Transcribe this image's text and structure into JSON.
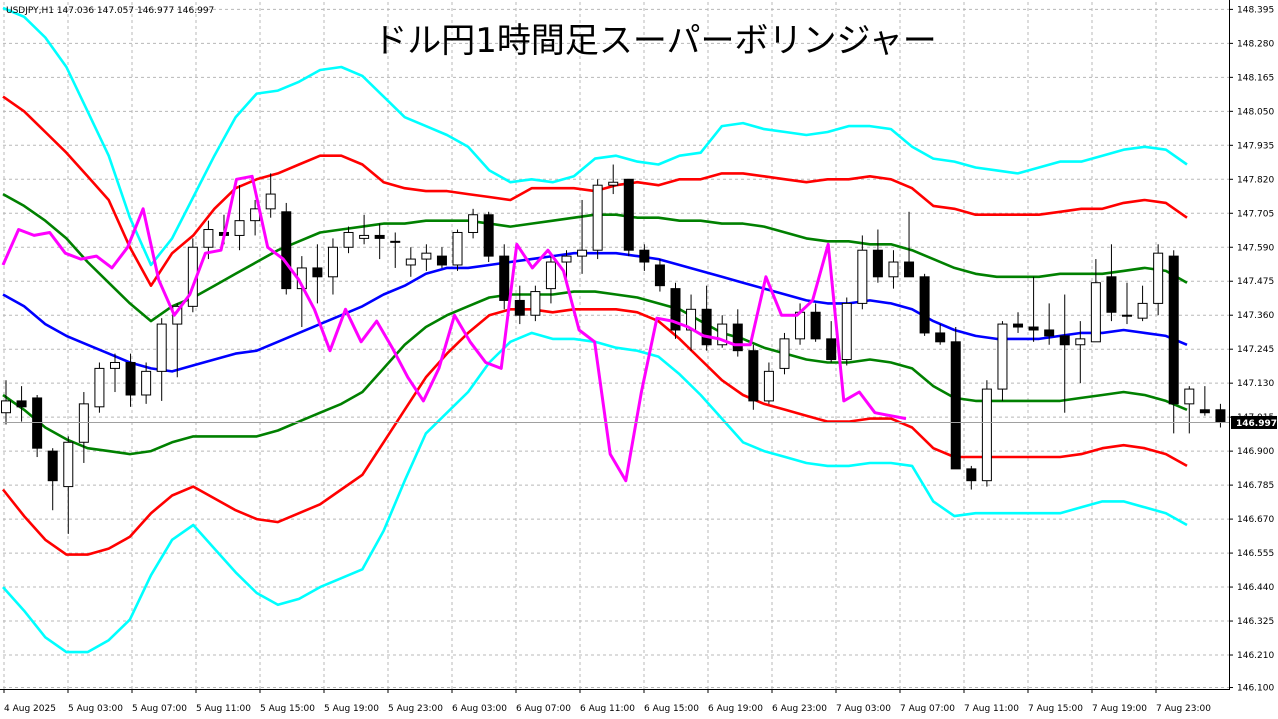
{
  "header": {
    "symbol_info": "USDJPY,H1  147.036 147.057 146.977 146.997"
  },
  "chart_data": {
    "type": "candlestick",
    "title": "ドル円1時間足スーパーボリンジャー",
    "y_range": [
      146.095,
      148.42
    ],
    "y_ticks": [
      "148.395",
      "148.280",
      "148.165",
      "148.050",
      "147.935",
      "147.820",
      "147.705",
      "147.590",
      "147.475",
      "147.360",
      "147.245",
      "147.130",
      "147.015",
      "146.900",
      "146.785",
      "146.670",
      "146.555",
      "146.440",
      "146.325",
      "146.210",
      "146.100"
    ],
    "x_labels": [
      "4 Aug 2025",
      "5 Aug 03:00",
      "5 Aug 07:00",
      "5 Aug 11:00",
      "5 Aug 15:00",
      "5 Aug 19:00",
      "5 Aug 23:00",
      "6 Aug 03:00",
      "6 Aug 07:00",
      "6 Aug 11:00",
      "6 Aug 15:00",
      "6 Aug 19:00",
      "6 Aug 23:00",
      "7 Aug 03:00",
      "7 Aug 07:00",
      "7 Aug 11:00",
      "7 Aug 15:00",
      "7 Aug 19:00",
      "7 Aug 23:00"
    ],
    "current_price": "146.997",
    "grid": true,
    "candles": [
      {
        "o": 147.03,
        "h": 147.14,
        "l": 146.99,
        "c": 147.07
      },
      {
        "o": 147.07,
        "h": 147.12,
        "l": 147.0,
        "c": 147.05
      },
      {
        "o": 147.08,
        "h": 147.09,
        "l": 146.88,
        "c": 146.91
      },
      {
        "o": 146.9,
        "h": 146.91,
        "l": 146.7,
        "c": 146.8
      },
      {
        "o": 146.78,
        "h": 146.95,
        "l": 146.62,
        "c": 146.93
      },
      {
        "o": 146.93,
        "h": 147.1,
        "l": 146.86,
        "c": 147.06
      },
      {
        "o": 147.05,
        "h": 147.2,
        "l": 147.03,
        "c": 147.18
      },
      {
        "o": 147.18,
        "h": 147.23,
        "l": 147.1,
        "c": 147.2
      },
      {
        "o": 147.2,
        "h": 147.23,
        "l": 147.05,
        "c": 147.09
      },
      {
        "o": 147.09,
        "h": 147.2,
        "l": 147.06,
        "c": 147.17
      },
      {
        "o": 147.17,
        "h": 147.35,
        "l": 147.07,
        "c": 147.33
      },
      {
        "o": 147.33,
        "h": 147.4,
        "l": 147.15,
        "c": 147.39
      },
      {
        "o": 147.39,
        "h": 147.62,
        "l": 147.37,
        "c": 147.59
      },
      {
        "o": 147.59,
        "h": 147.68,
        "l": 147.55,
        "c": 147.65
      },
      {
        "o": 147.64,
        "h": 147.7,
        "l": 147.6,
        "c": 147.63
      },
      {
        "o": 147.63,
        "h": 147.8,
        "l": 147.58,
        "c": 147.68
      },
      {
        "o": 147.68,
        "h": 147.75,
        "l": 147.63,
        "c": 147.72
      },
      {
        "o": 147.72,
        "h": 147.84,
        "l": 147.69,
        "c": 147.77
      },
      {
        "o": 147.71,
        "h": 147.74,
        "l": 147.43,
        "c": 147.45
      },
      {
        "o": 147.45,
        "h": 147.56,
        "l": 147.32,
        "c": 147.52
      },
      {
        "o": 147.52,
        "h": 147.6,
        "l": 147.4,
        "c": 147.49
      },
      {
        "o": 147.49,
        "h": 147.62,
        "l": 147.43,
        "c": 147.59
      },
      {
        "o": 147.59,
        "h": 147.66,
        "l": 147.57,
        "c": 147.64
      },
      {
        "o": 147.62,
        "h": 147.7,
        "l": 147.6,
        "c": 147.63
      },
      {
        "o": 147.63,
        "h": 147.67,
        "l": 147.55,
        "c": 147.62
      },
      {
        "o": 147.61,
        "h": 147.64,
        "l": 147.52,
        "c": 147.61
      },
      {
        "o": 147.53,
        "h": 147.59,
        "l": 147.49,
        "c": 147.55
      },
      {
        "o": 147.55,
        "h": 147.6,
        "l": 147.51,
        "c": 147.57
      },
      {
        "o": 147.56,
        "h": 147.59,
        "l": 147.52,
        "c": 147.53
      },
      {
        "o": 147.53,
        "h": 147.65,
        "l": 147.51,
        "c": 147.64
      },
      {
        "o": 147.64,
        "h": 147.72,
        "l": 147.62,
        "c": 147.7
      },
      {
        "o": 147.7,
        "h": 147.71,
        "l": 147.54,
        "c": 147.56
      },
      {
        "o": 147.56,
        "h": 147.6,
        "l": 147.38,
        "c": 147.41
      },
      {
        "o": 147.41,
        "h": 147.46,
        "l": 147.33,
        "c": 147.36
      },
      {
        "o": 147.36,
        "h": 147.46,
        "l": 147.34,
        "c": 147.44
      },
      {
        "o": 147.45,
        "h": 147.56,
        "l": 147.4,
        "c": 147.54
      },
      {
        "o": 147.54,
        "h": 147.58,
        "l": 147.48,
        "c": 147.56
      },
      {
        "o": 147.56,
        "h": 147.75,
        "l": 147.5,
        "c": 147.58
      },
      {
        "o": 147.58,
        "h": 147.82,
        "l": 147.55,
        "c": 147.8
      },
      {
        "o": 147.8,
        "h": 147.87,
        "l": 147.77,
        "c": 147.81
      },
      {
        "o": 147.82,
        "h": 147.82,
        "l": 147.56,
        "c": 147.58
      },
      {
        "o": 147.58,
        "h": 147.6,
        "l": 147.51,
        "c": 147.54
      },
      {
        "o": 147.53,
        "h": 147.55,
        "l": 147.44,
        "c": 147.46
      },
      {
        "o": 147.45,
        "h": 147.47,
        "l": 147.28,
        "c": 147.31
      },
      {
        "o": 147.31,
        "h": 147.43,
        "l": 147.24,
        "c": 147.38
      },
      {
        "o": 147.38,
        "h": 147.46,
        "l": 147.24,
        "c": 147.26
      },
      {
        "o": 147.26,
        "h": 147.36,
        "l": 147.25,
        "c": 147.33
      },
      {
        "o": 147.33,
        "h": 147.38,
        "l": 147.22,
        "c": 147.24
      },
      {
        "o": 147.24,
        "h": 147.26,
        "l": 147.04,
        "c": 147.07
      },
      {
        "o": 147.07,
        "h": 147.2,
        "l": 147.06,
        "c": 147.17
      },
      {
        "o": 147.18,
        "h": 147.3,
        "l": 147.16,
        "c": 147.28
      },
      {
        "o": 147.28,
        "h": 147.4,
        "l": 147.26,
        "c": 147.37
      },
      {
        "o": 147.37,
        "h": 147.4,
        "l": 147.27,
        "c": 147.28
      },
      {
        "o": 147.28,
        "h": 147.34,
        "l": 147.2,
        "c": 147.21
      },
      {
        "o": 147.21,
        "h": 147.42,
        "l": 147.19,
        "c": 147.4
      },
      {
        "o": 147.4,
        "h": 147.63,
        "l": 147.38,
        "c": 147.58
      },
      {
        "o": 147.58,
        "h": 147.65,
        "l": 147.47,
        "c": 147.49
      },
      {
        "o": 147.49,
        "h": 147.58,
        "l": 147.45,
        "c": 147.54
      },
      {
        "o": 147.54,
        "h": 147.71,
        "l": 147.49,
        "c": 147.49
      },
      {
        "o": 147.49,
        "h": 147.5,
        "l": 147.29,
        "c": 147.3
      },
      {
        "o": 147.3,
        "h": 147.33,
        "l": 147.26,
        "c": 147.27
      },
      {
        "o": 147.27,
        "h": 147.32,
        "l": 146.84,
        "c": 146.84
      },
      {
        "o": 146.84,
        "h": 146.85,
        "l": 146.77,
        "c": 146.8
      },
      {
        "o": 146.8,
        "h": 147.14,
        "l": 146.78,
        "c": 147.11
      },
      {
        "o": 147.11,
        "h": 147.34,
        "l": 147.07,
        "c": 147.33
      },
      {
        "o": 147.33,
        "h": 147.37,
        "l": 147.3,
        "c": 147.32
      },
      {
        "o": 147.32,
        "h": 147.49,
        "l": 147.27,
        "c": 147.31
      },
      {
        "o": 147.31,
        "h": 147.4,
        "l": 147.26,
        "c": 147.29
      },
      {
        "o": 147.29,
        "h": 147.43,
        "l": 147.03,
        "c": 147.26
      },
      {
        "o": 147.26,
        "h": 147.34,
        "l": 147.13,
        "c": 147.28
      },
      {
        "o": 147.27,
        "h": 147.55,
        "l": 147.27,
        "c": 147.47
      },
      {
        "o": 147.49,
        "h": 147.6,
        "l": 147.34,
        "c": 147.37
      },
      {
        "o": 147.36,
        "h": 147.47,
        "l": 147.33,
        "c": 147.36
      },
      {
        "o": 147.35,
        "h": 147.46,
        "l": 147.34,
        "c": 147.4
      },
      {
        "o": 147.4,
        "h": 147.6,
        "l": 147.36,
        "c": 147.57
      },
      {
        "o": 147.56,
        "h": 147.58,
        "l": 146.96,
        "c": 147.06
      },
      {
        "o": 147.06,
        "h": 147.12,
        "l": 146.96,
        "c": 147.11
      },
      {
        "o": 147.04,
        "h": 147.12,
        "l": 147.02,
        "c": 147.03
      },
      {
        "o": 147.04,
        "h": 147.06,
        "l": 146.98,
        "c": 147.0
      }
    ],
    "series": [
      {
        "color": "#00ffff",
        "values": [
          148.4,
          148.37,
          148.3,
          148.2,
          148.05,
          147.9,
          147.69,
          147.53,
          147.62,
          147.76,
          147.9,
          148.03,
          148.11,
          148.12,
          148.15,
          148.19,
          148.2,
          148.17,
          148.1,
          148.03,
          148.0,
          147.97,
          147.93,
          147.85,
          147.81,
          147.82,
          147.81,
          147.83,
          147.89,
          147.9,
          147.88,
          147.87,
          147.9,
          147.91,
          148.0,
          148.01,
          147.99,
          147.98,
          147.97,
          147.98,
          148.0,
          148.0,
          147.99,
          147.93,
          147.89,
          147.88,
          147.86,
          147.85,
          147.84,
          147.86,
          147.88,
          147.88,
          147.9,
          147.92,
          147.93,
          147.92,
          147.87
        ]
      },
      {
        "color": "#ff0000",
        "values": [
          148.1,
          148.05,
          147.98,
          147.91,
          147.83,
          147.75,
          147.59,
          147.46,
          147.57,
          147.63,
          147.72,
          147.79,
          147.82,
          147.84,
          147.87,
          147.9,
          147.9,
          147.87,
          147.81,
          147.79,
          147.78,
          147.78,
          147.77,
          147.76,
          147.75,
          147.79,
          147.79,
          147.79,
          147.78,
          147.8,
          147.81,
          147.8,
          147.82,
          147.82,
          147.84,
          147.84,
          147.83,
          147.82,
          147.81,
          147.82,
          147.82,
          147.83,
          147.82,
          147.79,
          147.73,
          147.72,
          147.7,
          147.7,
          147.7,
          147.7,
          147.71,
          147.72,
          147.72,
          147.74,
          147.75,
          147.74,
          147.69
        ]
      },
      {
        "color": "#008000",
        "values": [
          147.77,
          147.73,
          147.68,
          147.62,
          147.54,
          147.47,
          147.4,
          147.34,
          147.39,
          147.42,
          147.46,
          147.5,
          147.54,
          147.58,
          147.61,
          147.64,
          147.65,
          147.66,
          147.67,
          147.67,
          147.68,
          147.68,
          147.68,
          147.67,
          147.66,
          147.67,
          147.68,
          147.69,
          147.7,
          147.7,
          147.69,
          147.69,
          147.68,
          147.68,
          147.67,
          147.67,
          147.66,
          147.64,
          147.62,
          147.61,
          147.61,
          147.6,
          147.6,
          147.58,
          147.55,
          147.52,
          147.5,
          147.49,
          147.49,
          147.49,
          147.5,
          147.5,
          147.5,
          147.51,
          147.52,
          147.51,
          147.47
        ]
      },
      {
        "color": "#0000ff",
        "values": [
          147.43,
          147.39,
          147.33,
          147.29,
          147.26,
          147.23,
          147.2,
          147.18,
          147.17,
          147.19,
          147.21,
          147.23,
          147.24,
          147.27,
          147.3,
          147.33,
          147.36,
          147.39,
          147.43,
          147.46,
          147.5,
          147.52,
          147.52,
          147.53,
          147.54,
          147.55,
          147.56,
          147.57,
          147.57,
          147.57,
          147.56,
          147.55,
          147.53,
          147.51,
          147.49,
          147.47,
          147.45,
          147.43,
          147.41,
          147.4,
          147.4,
          147.41,
          147.4,
          147.38,
          147.34,
          147.31,
          147.29,
          147.28,
          147.28,
          147.28,
          147.29,
          147.3,
          147.3,
          147.31,
          147.3,
          147.29,
          147.26
        ]
      },
      {
        "color": "#008000",
        "values": [
          147.09,
          147.04,
          146.98,
          146.94,
          146.91,
          146.9,
          146.89,
          146.9,
          146.93,
          146.95,
          146.95,
          146.95,
          146.95,
          146.97,
          147.0,
          147.03,
          147.06,
          147.1,
          147.18,
          147.26,
          147.32,
          147.36,
          147.39,
          147.42,
          147.43,
          147.43,
          147.43,
          147.44,
          147.44,
          147.43,
          147.42,
          147.4,
          147.38,
          147.34,
          147.3,
          147.28,
          147.25,
          147.23,
          147.21,
          147.2,
          147.2,
          147.21,
          147.2,
          147.18,
          147.12,
          147.08,
          147.07,
          147.07,
          147.07,
          147.07,
          147.07,
          147.08,
          147.09,
          147.1,
          147.09,
          147.07,
          147.04
        ]
      },
      {
        "color": "#ff0000",
        "values": [
          146.77,
          146.68,
          146.6,
          146.55,
          146.55,
          146.57,
          146.61,
          146.69,
          146.75,
          146.78,
          146.74,
          146.7,
          146.67,
          146.66,
          146.69,
          146.72,
          146.77,
          146.82,
          146.93,
          147.04,
          147.15,
          147.23,
          147.3,
          147.36,
          147.38,
          147.38,
          147.37,
          147.38,
          147.38,
          147.38,
          147.37,
          147.34,
          147.28,
          147.21,
          147.14,
          147.09,
          147.06,
          147.04,
          147.02,
          147.0,
          147.0,
          147.01,
          147.01,
          146.98,
          146.91,
          146.88,
          146.88,
          146.88,
          146.88,
          146.88,
          146.88,
          146.89,
          146.91,
          146.92,
          146.91,
          146.89,
          146.85
        ]
      },
      {
        "color": "#00ffff",
        "values": [
          146.44,
          146.36,
          146.27,
          146.22,
          146.22,
          146.26,
          146.33,
          146.48,
          146.6,
          146.65,
          146.57,
          146.49,
          146.42,
          146.38,
          146.4,
          146.44,
          146.47,
          146.5,
          146.63,
          146.8,
          146.96,
          147.03,
          147.1,
          147.2,
          147.27,
          147.3,
          147.28,
          147.28,
          147.27,
          147.25,
          147.24,
          147.22,
          147.16,
          147.09,
          147.01,
          146.93,
          146.9,
          146.88,
          146.86,
          146.85,
          146.85,
          146.86,
          146.86,
          146.85,
          146.73,
          146.68,
          146.69,
          146.69,
          146.69,
          146.69,
          146.69,
          146.71,
          146.73,
          146.73,
          146.71,
          146.69,
          146.65
        ]
      }
    ],
    "chikou": {
      "color": "#ff00ff",
      "values": [
        147.53,
        147.65,
        147.63,
        147.64,
        147.57,
        147.55,
        147.56,
        147.52,
        147.59,
        147.72,
        147.48,
        147.36,
        147.43,
        147.57,
        147.58,
        147.82,
        147.83,
        147.59,
        147.55,
        147.48,
        147.38,
        147.24,
        147.38,
        147.27,
        147.34,
        147.25,
        147.15,
        147.07,
        147.18,
        147.36,
        147.27,
        147.2,
        147.18,
        147.6,
        147.52,
        147.58,
        147.51,
        147.31,
        147.27,
        146.89,
        146.8,
        147.1,
        147.35,
        147.34,
        147.32,
        147.29,
        147.28,
        147.26,
        147.26,
        147.49,
        147.36,
        147.36,
        147.41,
        147.6,
        147.07,
        147.1,
        147.03,
        147.02,
        147.01
      ]
    }
  }
}
